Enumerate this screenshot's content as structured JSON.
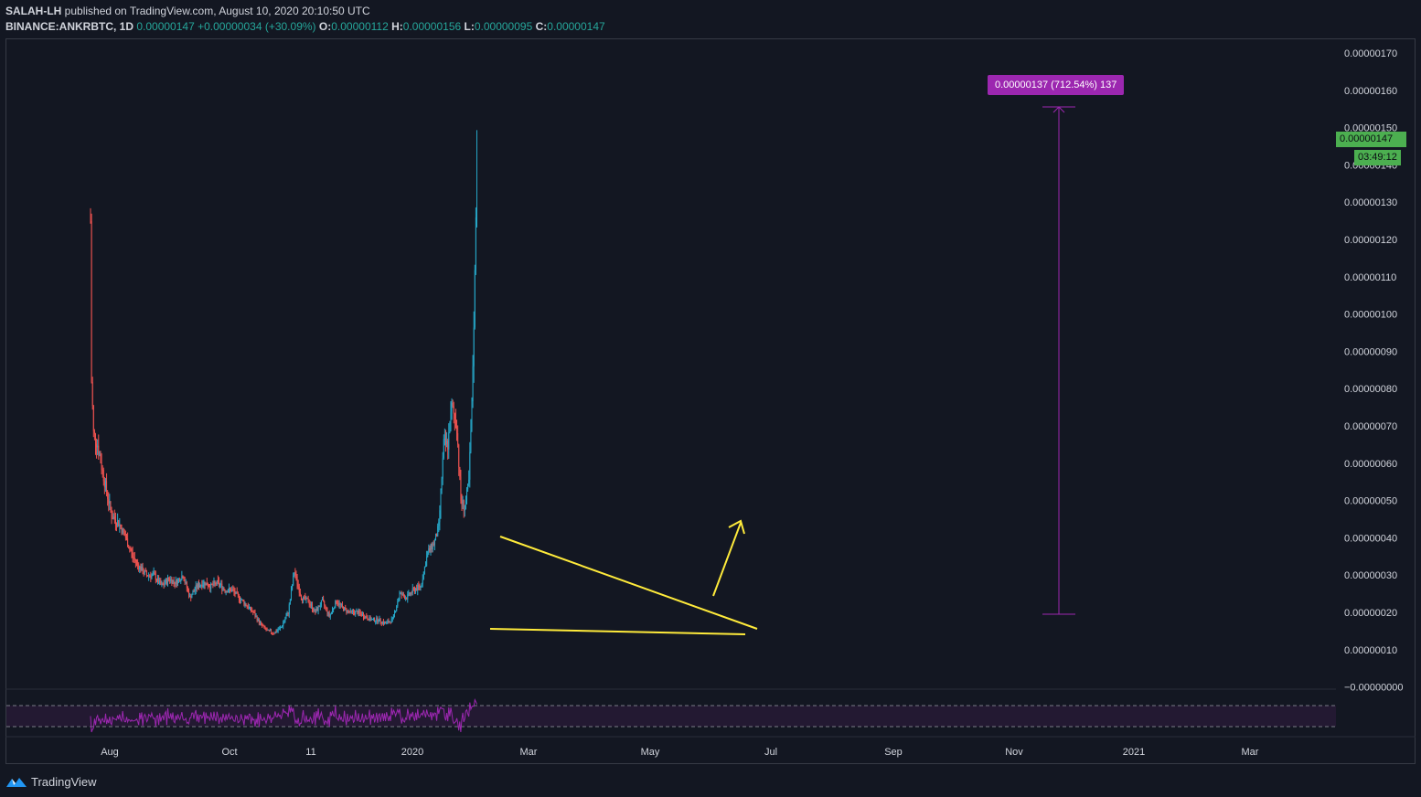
{
  "header": {
    "author": "SALAH-LH",
    "published": "published on TradingView.com, August 10, 2020 20:10:50 UTC",
    "symbol": "BINANCE:ANKRBTC, 1D",
    "last": "0.00000147",
    "change": "+0.00000034 (+30.09%)",
    "o_label": "O:",
    "o_value": "0.00000112",
    "h_label": "H:",
    "h_value": "0.00000156",
    "l_label": "L:",
    "l_value": "0.00000095",
    "c_label": "C:",
    "c_value": "0.00000147"
  },
  "badges": {
    "price": "0.00000147",
    "countdown": "03:49:12",
    "measure": "0.00000137 (712.54%) 137"
  },
  "footer": {
    "brand": "TradingView"
  },
  "colors": {
    "background": "#131722",
    "up": "#26a7c8",
    "down": "#ef5350",
    "drawing": "#ffeb3b",
    "measure": "#9c27b0",
    "rsi": "#9c27b0",
    "price_badge": "#4caf50"
  },
  "chart_data": {
    "type": "candlestick",
    "title": "",
    "xlabel": "",
    "ylabel": "",
    "x_ticks": [
      "Aug",
      "Oct",
      "11",
      "2020",
      "Mar",
      "May",
      "Jul",
      "Sep",
      "Nov",
      "2021",
      "Mar"
    ],
    "y_ticks": [
      "0.00000170",
      "0.00000160",
      "0.00000150",
      "0.00000140",
      "0.00000130",
      "0.00000120",
      "0.00000110",
      "0.00000100",
      "0.00000090",
      "0.00000080",
      "0.00000070",
      "0.00000060",
      "0.00000050",
      "0.00000040",
      "0.00000030",
      "0.00000020",
      "0.00000010",
      "−0.00000000"
    ],
    "ylim": [
      0,
      1.75e-06
    ],
    "grid": false,
    "indicator": "RSI",
    "price_path": [
      [
        "2019-07-22",
        1.25e-06
      ],
      [
        "2019-07-23",
        8.2e-07
      ],
      [
        "2019-07-25",
        6.8e-07
      ],
      [
        "2019-07-29",
        6.5e-07
      ],
      [
        "2019-08-05",
        5.5e-07
      ],
      [
        "2019-08-12",
        4.6e-07
      ],
      [
        "2019-08-19",
        4.4e-07
      ],
      [
        "2019-08-26",
        4e-07
      ],
      [
        "2019-09-02",
        3.5e-07
      ],
      [
        "2019-09-09",
        3.2e-07
      ],
      [
        "2019-09-16",
        3e-07
      ],
      [
        "2019-09-23",
        3e-07
      ],
      [
        "2019-10-01",
        2.7e-07
      ],
      [
        "2019-10-08",
        2.9e-07
      ],
      [
        "2019-10-15",
        2.8e-07
      ],
      [
        "2019-10-22",
        3e-07
      ],
      [
        "2019-10-29",
        2.4e-07
      ],
      [
        "2019-11-05",
        2.7e-07
      ],
      [
        "2019-11-12",
        2.8e-07
      ],
      [
        "2019-11-19",
        2.7e-07
      ],
      [
        "2019-11-26",
        2.8e-07
      ],
      [
        "2019-12-03",
        2.6e-07
      ],
      [
        "2019-12-10",
        2.6e-07
      ],
      [
        "2019-12-17",
        2.4e-07
      ],
      [
        "2019-12-24",
        2.2e-07
      ],
      [
        "2019-12-31",
        2e-07
      ],
      [
        "2020-01-07",
        1.7e-07
      ],
      [
        "2020-01-14",
        1.5e-07
      ],
      [
        "2020-01-21",
        1.45e-07
      ],
      [
        "2020-01-28",
        1.6e-07
      ],
      [
        "2020-02-04",
        2e-07
      ],
      [
        "2020-02-10",
        3.1e-07
      ],
      [
        "2020-02-17",
        2.4e-07
      ],
      [
        "2020-02-24",
        2.3e-07
      ],
      [
        "2020-03-02",
        2e-07
      ],
      [
        "2020-03-09",
        2.3e-07
      ],
      [
        "2020-03-16",
        1.9e-07
      ],
      [
        "2020-03-23",
        2.3e-07
      ],
      [
        "2020-03-30",
        2.1e-07
      ],
      [
        "2020-04-06",
        2e-07
      ],
      [
        "2020-04-13",
        2e-07
      ],
      [
        "2020-04-20",
        1.9e-07
      ],
      [
        "2020-04-27",
        1.8e-07
      ],
      [
        "2020-05-04",
        1.8e-07
      ],
      [
        "2020-05-11",
        1.7e-07
      ],
      [
        "2020-05-18",
        1.8e-07
      ],
      [
        "2020-05-25",
        2.5e-07
      ],
      [
        "2020-06-01",
        2.4e-07
      ],
      [
        "2020-06-08",
        2.6e-07
      ],
      [
        "2020-06-15",
        2.7e-07
      ],
      [
        "2020-06-22",
        3.6e-07
      ],
      [
        "2020-06-29",
        3.9e-07
      ],
      [
        "2020-07-03",
        4.3e-07
      ],
      [
        "2020-07-08",
        6.5e-07
      ],
      [
        "2020-07-12",
        6.5e-07
      ],
      [
        "2020-07-16",
        7.5e-07
      ],
      [
        "2020-07-21",
        7e-07
      ],
      [
        "2020-07-25",
        5e-07
      ],
      [
        "2020-07-29",
        4.8e-07
      ],
      [
        "2020-08-02",
        5.5e-07
      ],
      [
        "2020-08-05",
        7.5e-07
      ],
      [
        "2020-08-08",
        1.1e-06
      ],
      [
        "2020-08-10",
        1.47e-06
      ]
    ]
  }
}
